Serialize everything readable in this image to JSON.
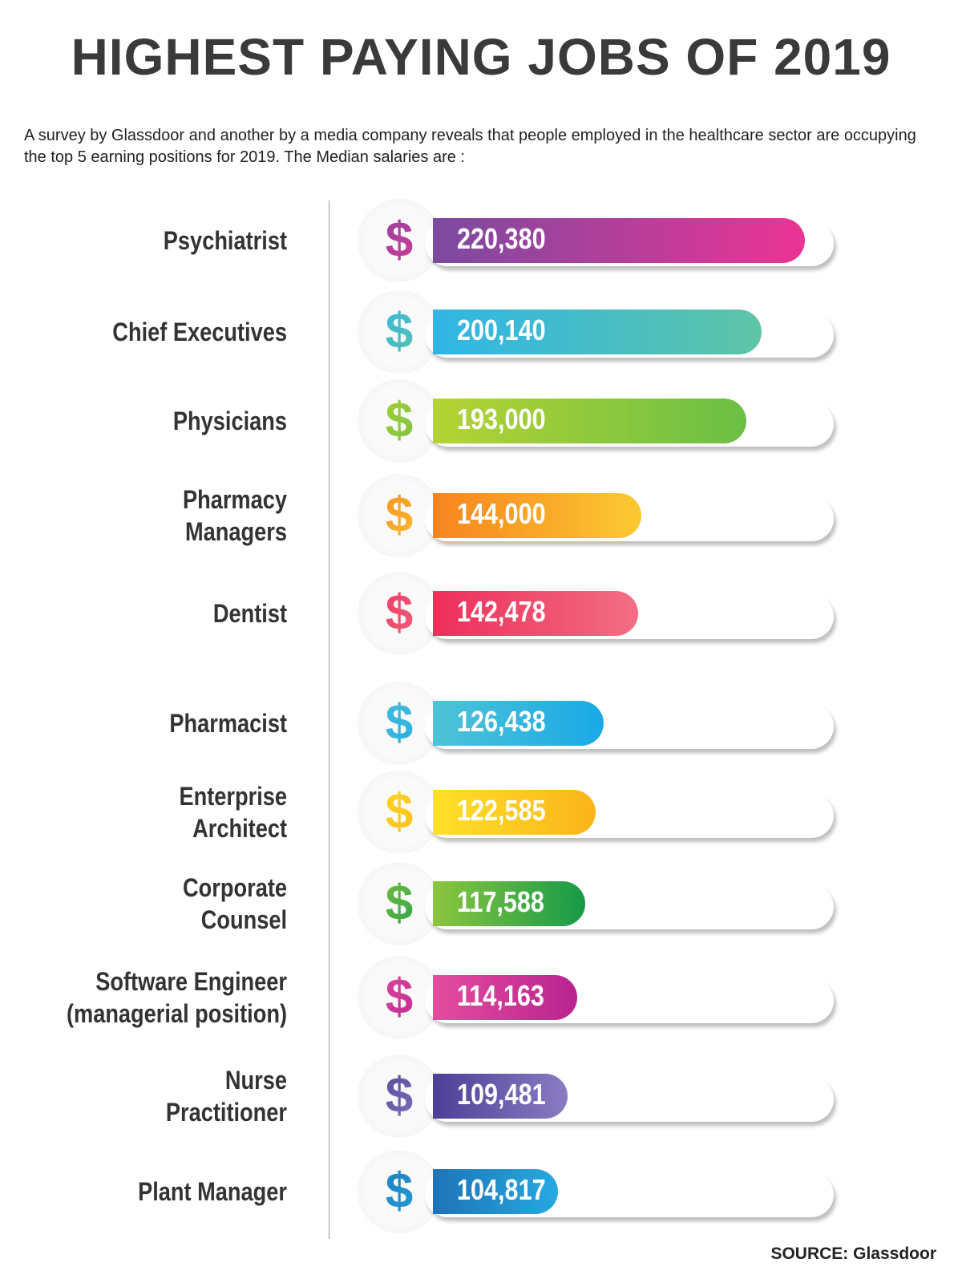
{
  "title": "HIGHEST PAYING JOBS OF 2019",
  "description": "A survey by Glassdoor and another by a media company reveals that people employed in the healthcare sector are occupying the top 5 earning positions for 2019. The Median salaries are :",
  "source": "SOURCE: Glassdoor",
  "chart_data": {
    "type": "bar",
    "orientation": "horizontal",
    "title": "HIGHEST PAYING JOBS OF 2019",
    "categories": [
      "Psychiatrist",
      "Chief Executives",
      "Physicians",
      "Pharmacy\nManagers",
      "Dentist",
      "Pharmacist",
      "Enterprise\nArchitect",
      "Corporate\nCounsel",
      "Software Engineer\n(managerial position)",
      "Nurse\nPractitioner",
      "Plant Manager"
    ],
    "values": [
      220380,
      200140,
      193000,
      144000,
      142478,
      126438,
      122585,
      117588,
      114163,
      109481,
      104817
    ],
    "value_labels": [
      "220,380",
      "200,140",
      "193,000",
      "144,000",
      "142,478",
      "126,438",
      "122,585",
      "117,588",
      "114,163",
      "109,481",
      "104,817"
    ],
    "icon": "dollar-icon",
    "colors": [
      [
        "#7b4aa0",
        "#ec3494"
      ],
      [
        "#2fb6e6",
        "#5ec4a6"
      ],
      [
        "#b5d334",
        "#6bbf45"
      ],
      [
        "#f7841f",
        "#fcc932"
      ],
      [
        "#ee2e5a",
        "#f26e84"
      ],
      [
        "#4fc3d6",
        "#1aa9e6"
      ],
      [
        "#ffe02a",
        "#fbb41a"
      ],
      [
        "#8cc63f",
        "#159a48"
      ],
      [
        "#e54da0",
        "#b8238f"
      ],
      [
        "#4c3f97",
        "#8b7cc2"
      ],
      [
        "#1f73b7",
        "#26a9e0"
      ]
    ]
  }
}
